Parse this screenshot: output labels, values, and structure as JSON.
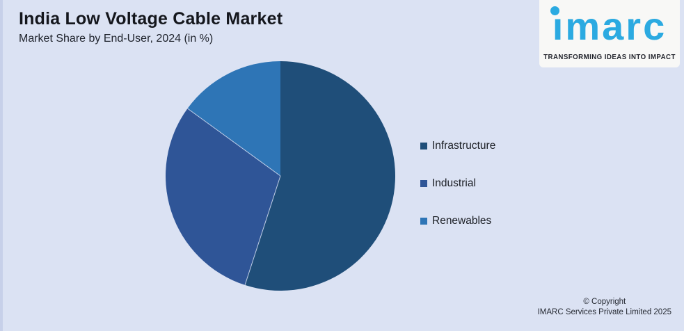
{
  "header": {
    "title": "India Low Voltage Cable Market",
    "subtitle": "Market Share by End-User, 2024 (in %)"
  },
  "logo": {
    "brand": "imarc",
    "tagline": "TRANSFORMING IDEAS INTO IMPACT",
    "brand_color": "#2baae1"
  },
  "chart_data": {
    "type": "pie",
    "title": "India Low Voltage Cable Market",
    "subtitle": "Market Share by End-User, 2024 (in %)",
    "unit": "%",
    "start_angle_deg": 0,
    "direction": "clockwise",
    "legend_position": "right",
    "values_shown_on_chart": false,
    "segments": [
      {
        "label": "Infrastructure",
        "value": 55,
        "color": "#1f4e79"
      },
      {
        "label": "Industrial",
        "value": 30,
        "color": "#2f5597"
      },
      {
        "label": "Renewables",
        "value": 15,
        "color": "#2e75b6"
      }
    ]
  },
  "footer": {
    "copyright_line1": "© Copyright",
    "copyright_line2": "IMARC Services Private Limited 2025"
  },
  "colors": {
    "background": "#dbe2f3",
    "left_edge": "#c7d0e9",
    "logo_box_background": "#f8f8f6",
    "title_text": "#14161c",
    "legend_text": "#1b1e24",
    "footer_text": "#262a33"
  }
}
